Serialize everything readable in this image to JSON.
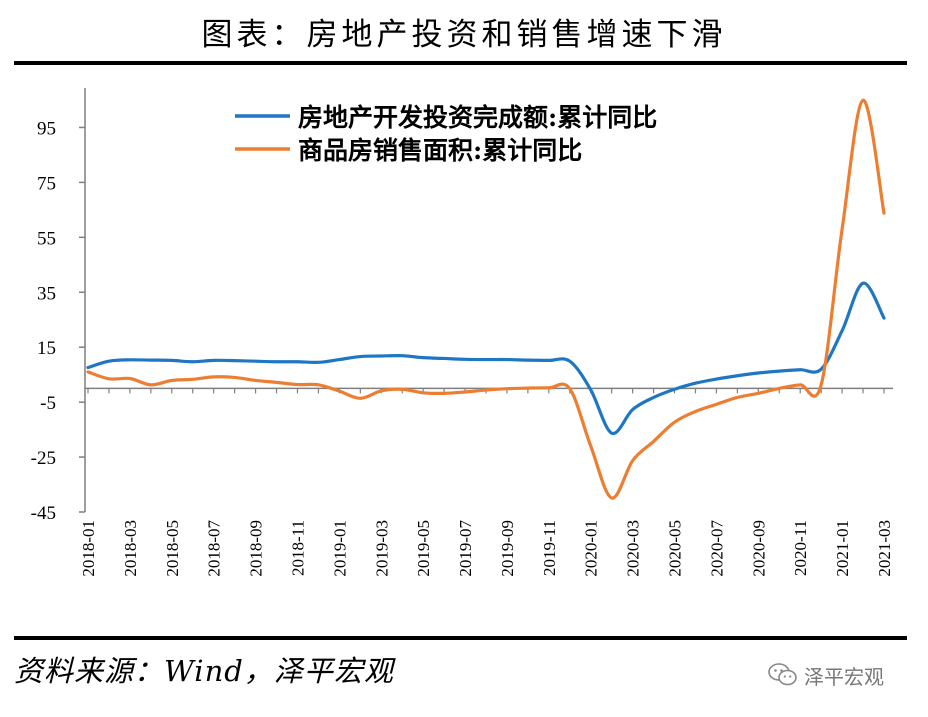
{
  "title": "图表：房地产投资和销售增速下滑",
  "source": "资料来源：Wind，泽平宏观",
  "watermark": {
    "text": "泽平宏观",
    "icon": "wechat-icon"
  },
  "colors": {
    "investment": "#1f77c4",
    "sales": "#ed7d31",
    "axis": "#7f7f7f"
  },
  "chart_data": {
    "type": "line",
    "title": "",
    "xlabel": "",
    "ylabel": "",
    "ylim": [
      -45,
      105
    ],
    "yticks": [
      95,
      75,
      55,
      35,
      15,
      -5,
      -25,
      -45
    ],
    "grid": false,
    "legend_position": "top-center",
    "x": [
      "2018-01",
      "2018-02",
      "2018-03",
      "2018-04",
      "2018-05",
      "2018-06",
      "2018-07",
      "2018-08",
      "2018-09",
      "2018-10",
      "2018-11",
      "2018-12",
      "2019-01",
      "2019-02",
      "2019-03",
      "2019-04",
      "2019-05",
      "2019-06",
      "2019-07",
      "2019-08",
      "2019-09",
      "2019-10",
      "2019-11",
      "2019-12",
      "2020-01",
      "2020-02",
      "2020-03",
      "2020-04",
      "2020-05",
      "2020-06",
      "2020-07",
      "2020-08",
      "2020-09",
      "2020-10",
      "2020-11",
      "2020-12",
      "2021-01",
      "2021-02",
      "2021-03"
    ],
    "xtick_labels": [
      "2018-01",
      "2018-03",
      "2018-05",
      "2018-07",
      "2018-09",
      "2018-11",
      "2019-01",
      "2019-03",
      "2019-05",
      "2019-07",
      "2019-09",
      "2019-11",
      "2020-01",
      "2020-03",
      "2020-05",
      "2020-07",
      "2020-09",
      "2020-11",
      "2021-01",
      "2021-03"
    ],
    "series": [
      {
        "name": "房地产开发投资完成额:累计同比",
        "color": "#1f77c4",
        "values": [
          7.6,
          9.9,
          10.4,
          10.3,
          10.2,
          9.7,
          10.2,
          10.1,
          9.9,
          9.7,
          9.7,
          9.5,
          10.5,
          11.6,
          11.8,
          11.9,
          11.2,
          10.9,
          10.6,
          10.5,
          10.5,
          10.3,
          10.2,
          9.9,
          -0.5,
          -16.3,
          -7.7,
          -3.3,
          -0.3,
          1.9,
          3.4,
          4.6,
          5.6,
          6.3,
          6.8,
          7.0,
          21.0,
          38.3,
          25.6
        ]
      },
      {
        "name": "商品房销售面积:累计同比",
        "color": "#ed7d31",
        "values": [
          6.0,
          3.5,
          3.6,
          1.3,
          2.9,
          3.3,
          4.2,
          4.0,
          2.9,
          2.2,
          1.4,
          1.3,
          -1.0,
          -3.6,
          -0.9,
          -0.3,
          -1.6,
          -1.8,
          -1.3,
          -0.6,
          -0.1,
          0.1,
          0.2,
          -0.1,
          -21.0,
          -39.9,
          -26.3,
          -19.3,
          -12.3,
          -8.4,
          -5.8,
          -3.3,
          -1.8,
          0.0,
          1.3,
          1.3,
          58.0,
          104.9,
          63.8
        ]
      }
    ]
  }
}
